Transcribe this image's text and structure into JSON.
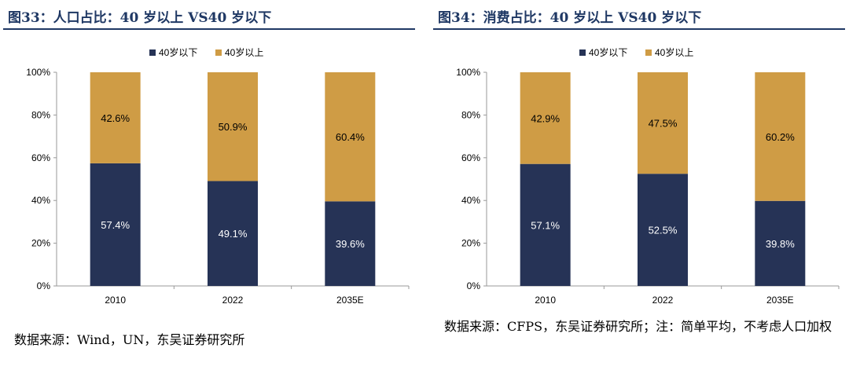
{
  "panels": [
    {
      "title": "图33：人口占比：40 岁以上 VS40 岁以下",
      "source": "数据来源：Wind，UN，东吴证券研究所"
    },
    {
      "title": "图34：消费占比：40 岁以上 VS40 岁以下",
      "source": "数据来源：CFPS，东吴证券研究所；注：简单平均，不考虑人口加权"
    }
  ],
  "colors": {
    "below40": "#263356",
    "above40": "#cf9c45"
  },
  "chart_data": [
    {
      "type": "bar",
      "stacked": true,
      "title": "图33：人口占比：40 岁以上 VS40 岁以下",
      "categories": [
        "2010",
        "2022",
        "2035E"
      ],
      "series": [
        {
          "name": "40岁以下",
          "values": [
            57.4,
            49.1,
            39.6
          ],
          "labels": [
            "57.4%",
            "49.1%",
            "39.6%"
          ]
        },
        {
          "name": "40岁以上",
          "values": [
            42.6,
            50.9,
            60.4
          ],
          "labels": [
            "42.6%",
            "50.9%",
            "60.4%"
          ]
        }
      ],
      "yticks": [
        "0%",
        "20%",
        "40%",
        "60%",
        "80%",
        "100%"
      ],
      "ylim": [
        0,
        100
      ],
      "legend": "top-center",
      "grid": false
    },
    {
      "type": "bar",
      "stacked": true,
      "title": "图34：消费占比：40 岁以上 VS40 岁以下",
      "categories": [
        "2010",
        "2022",
        "2035E"
      ],
      "series": [
        {
          "name": "40岁以下",
          "values": [
            57.1,
            52.5,
            39.8
          ],
          "labels": [
            "57.1%",
            "52.5%",
            "39.8%"
          ]
        },
        {
          "name": "40岁以上",
          "values": [
            42.9,
            47.5,
            60.2
          ],
          "labels": [
            "42.9%",
            "47.5%",
            "60.2%"
          ]
        }
      ],
      "yticks": [
        "0%",
        "20%",
        "40%",
        "60%",
        "80%",
        "100%"
      ],
      "ylim": [
        0,
        100
      ],
      "legend": "top-center",
      "grid": false
    }
  ]
}
